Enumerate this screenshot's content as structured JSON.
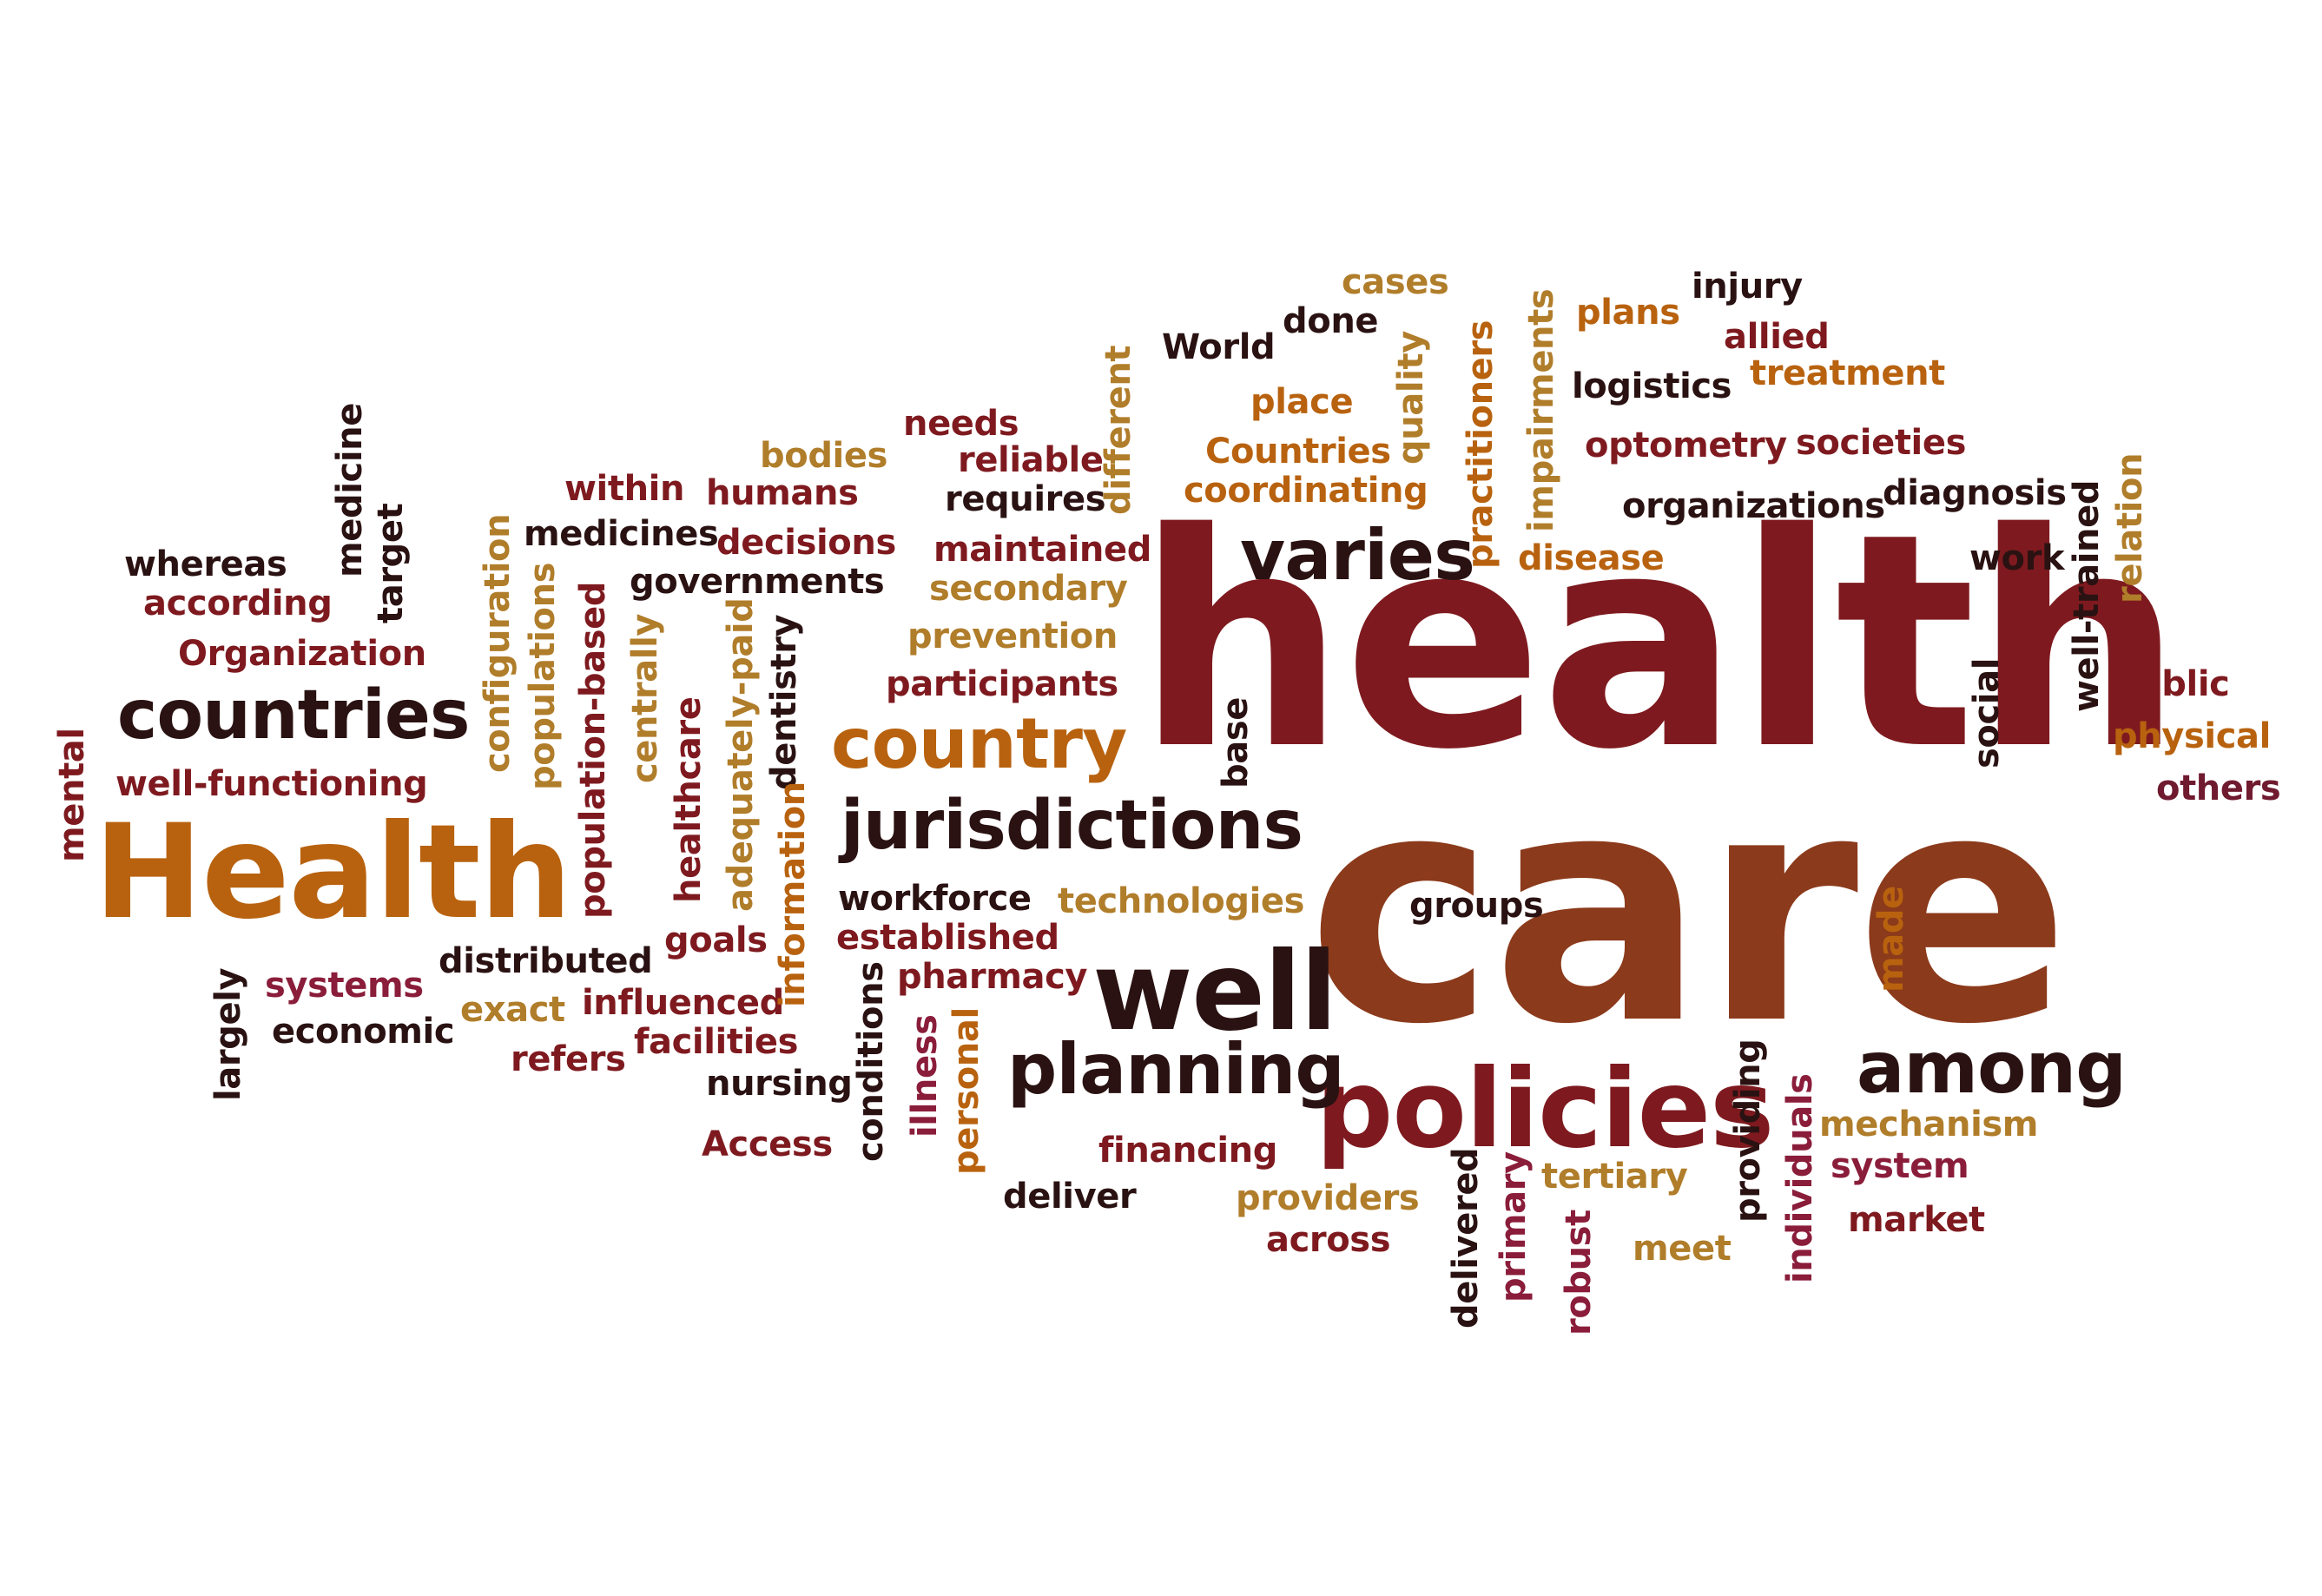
{
  "palette": {
    "c1": "#7e1a1f",
    "c2": "#8b3a1b",
    "c3": "#b8620f",
    "c4": "#b07d2a",
    "c5": "#2a1212",
    "c6": "#8a1d3a",
    "c7": "#6f1a2f"
  },
  "words": [
    {
      "text": "health",
      "c": "c1"
    },
    {
      "text": "care",
      "c": "c2"
    },
    {
      "text": "Health",
      "c": "c3"
    },
    {
      "text": "policies",
      "c": "c1"
    },
    {
      "text": "well",
      "c": "c5"
    },
    {
      "text": "among",
      "c": "c5"
    },
    {
      "text": "planning",
      "c": "c5"
    },
    {
      "text": "jurisdictions",
      "c": "c5"
    },
    {
      "text": "country",
      "c": "c3"
    },
    {
      "text": "countries",
      "c": "c5"
    },
    {
      "text": "varies",
      "c": "c5"
    },
    {
      "text": "cases",
      "c": "c4"
    },
    {
      "text": "injury",
      "c": "c5"
    },
    {
      "text": "done",
      "c": "c5"
    },
    {
      "text": "plans",
      "c": "c3"
    },
    {
      "text": "World",
      "c": "c5"
    },
    {
      "text": "allied",
      "c": "c1"
    },
    {
      "text": "treatment",
      "c": "c3"
    },
    {
      "text": "logistics",
      "c": "c5"
    },
    {
      "text": "place",
      "c": "c3"
    },
    {
      "text": "needs",
      "c": "c1"
    },
    {
      "text": "bodies",
      "c": "c4"
    },
    {
      "text": "reliable",
      "c": "c1"
    },
    {
      "text": "Countries",
      "c": "c3"
    },
    {
      "text": "optometry",
      "c": "c1"
    },
    {
      "text": "societies",
      "c": "c1"
    },
    {
      "text": "within",
      "c": "c1"
    },
    {
      "text": "humans",
      "c": "c1"
    },
    {
      "text": "requires",
      "c": "c5"
    },
    {
      "text": "coordinating",
      "c": "c3"
    },
    {
      "text": "diagnosis",
      "c": "c5"
    },
    {
      "text": "organizations",
      "c": "c5"
    },
    {
      "text": "medicines",
      "c": "c5"
    },
    {
      "text": "decisions",
      "c": "c1"
    },
    {
      "text": "maintained",
      "c": "c1"
    },
    {
      "text": "disease",
      "c": "c3"
    },
    {
      "text": "work",
      "c": "c5"
    },
    {
      "text": "whereas",
      "c": "c5"
    },
    {
      "text": "governments",
      "c": "c5"
    },
    {
      "text": "secondary",
      "c": "c4"
    },
    {
      "text": "according",
      "c": "c1"
    },
    {
      "text": "prevention",
      "c": "c4"
    },
    {
      "text": "Organization",
      "c": "c1"
    },
    {
      "text": "participants",
      "c": "c1"
    },
    {
      "text": "public",
      "c": "c1"
    },
    {
      "text": "physical",
      "c": "c3"
    },
    {
      "text": "others",
      "c": "c7"
    },
    {
      "text": "well-functioning",
      "c": "c1"
    },
    {
      "text": "workforce",
      "c": "c5"
    },
    {
      "text": "technologies",
      "c": "c4"
    },
    {
      "text": "groups",
      "c": "c5"
    },
    {
      "text": "established",
      "c": "c1"
    },
    {
      "text": "goals",
      "c": "c1"
    },
    {
      "text": "distributed",
      "c": "c5"
    },
    {
      "text": "pharmacy",
      "c": "c1"
    },
    {
      "text": "systems",
      "c": "c6"
    },
    {
      "text": "exact",
      "c": "c4"
    },
    {
      "text": "influenced",
      "c": "c1"
    },
    {
      "text": "economic",
      "c": "c5"
    },
    {
      "text": "facilities",
      "c": "c1"
    },
    {
      "text": "refers",
      "c": "c1"
    },
    {
      "text": "nursing",
      "c": "c5"
    },
    {
      "text": "mechanism",
      "c": "c4"
    },
    {
      "text": "system",
      "c": "c6"
    },
    {
      "text": "Access",
      "c": "c1"
    },
    {
      "text": "financing",
      "c": "c1"
    },
    {
      "text": "tertiary",
      "c": "c4"
    },
    {
      "text": "deliver",
      "c": "c5"
    },
    {
      "text": "providers",
      "c": "c4"
    },
    {
      "text": "market",
      "c": "c1"
    },
    {
      "text": "across",
      "c": "c1"
    },
    {
      "text": "meet",
      "c": "c4"
    },
    {
      "text": "medicine",
      "c": "c5"
    },
    {
      "text": "target",
      "c": "c5"
    },
    {
      "text": "configuration",
      "c": "c4"
    },
    {
      "text": "populations",
      "c": "c4"
    },
    {
      "text": "population-based",
      "c": "c1"
    },
    {
      "text": "centrally",
      "c": "c4"
    },
    {
      "text": "healthcare",
      "c": "c1"
    },
    {
      "text": "adequately-paid",
      "c": "c4"
    },
    {
      "text": "dentistry",
      "c": "c5"
    },
    {
      "text": "information",
      "c": "c3"
    },
    {
      "text": "mental",
      "c": "c1"
    },
    {
      "text": "largely",
      "c": "c5"
    },
    {
      "text": "different",
      "c": "c4"
    },
    {
      "text": "quality",
      "c": "c4"
    },
    {
      "text": "practitioners",
      "c": "c3"
    },
    {
      "text": "impairments",
      "c": "c4"
    },
    {
      "text": "relation",
      "c": "c4"
    },
    {
      "text": "well-trained",
      "c": "c5"
    },
    {
      "text": "base",
      "c": "c5"
    },
    {
      "text": "social",
      "c": "c5"
    },
    {
      "text": "made",
      "c": "c3"
    },
    {
      "text": "conditions",
      "c": "c5"
    },
    {
      "text": "illness",
      "c": "c6"
    },
    {
      "text": "personal",
      "c": "c3"
    },
    {
      "text": "delivered",
      "c": "c5"
    },
    {
      "text": "primary",
      "c": "c6"
    },
    {
      "text": "robust",
      "c": "c6"
    },
    {
      "text": "providing",
      "c": "c5"
    },
    {
      "text": "individuals",
      "c": "c6"
    }
  ]
}
